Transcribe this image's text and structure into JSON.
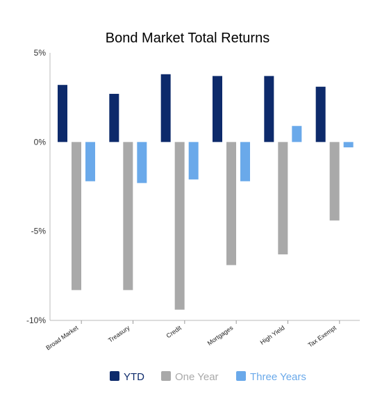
{
  "chart_data": {
    "type": "bar",
    "title": "Bond Market Total Returns",
    "xlabel": "",
    "ylabel": "",
    "categories": [
      "Broad Market",
      "Treasury",
      "Credit",
      "Mortgages",
      "High Yield",
      "Tax Exempt"
    ],
    "series": [
      {
        "name": "YTD",
        "color": "#0d2a6b",
        "values": [
          3.2,
          2.7,
          3.8,
          3.7,
          3.7,
          3.1
        ]
      },
      {
        "name": "One Year",
        "color": "#a9a9a9",
        "values": [
          -8.3,
          -8.3,
          -9.4,
          -6.9,
          -6.3,
          -4.4
        ]
      },
      {
        "name": "Three Years",
        "color": "#6aa9ea",
        "values": [
          -2.2,
          -2.3,
          -2.1,
          -2.2,
          0.9,
          -0.3
        ]
      }
    ],
    "ylim": [
      -10,
      5
    ],
    "yticks": [
      "5%",
      "0%",
      "-5%",
      "-10%"
    ],
    "ytick_values": [
      5,
      0,
      -5,
      -10
    ],
    "legend_position": "bottom",
    "grid": false
  }
}
